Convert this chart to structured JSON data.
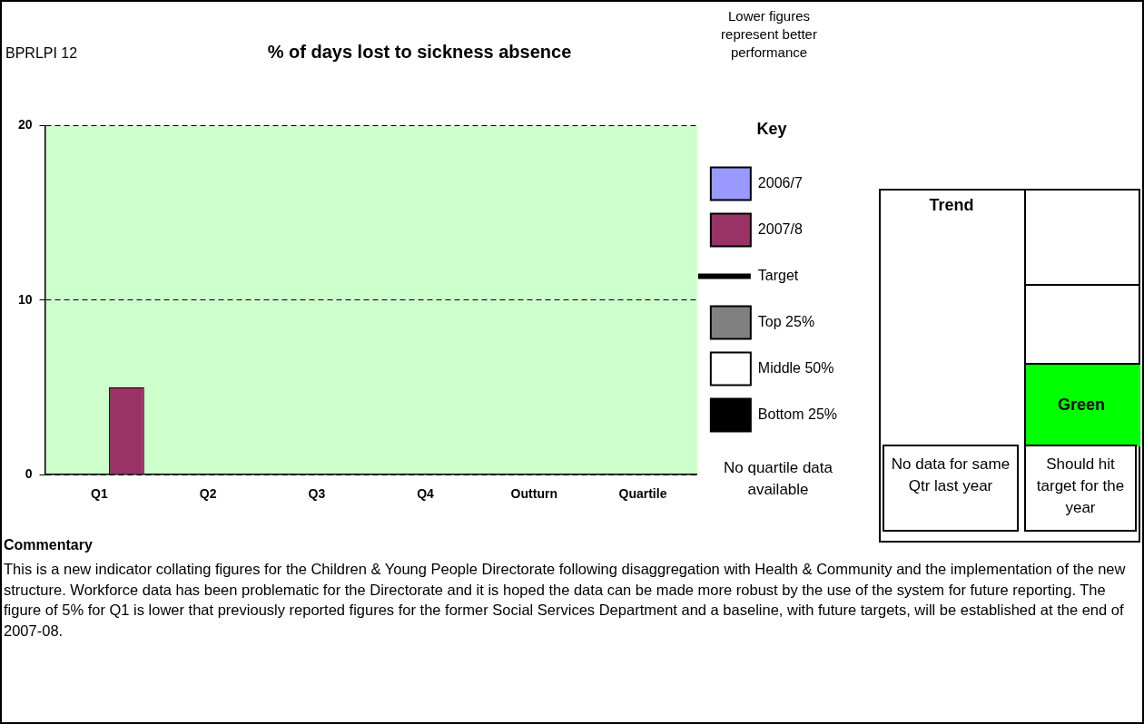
{
  "chart_data": {
    "type": "bar",
    "title": "% of days lost to sickness absence",
    "categories": [
      "Q1",
      "Q2",
      "Q3",
      "Q4",
      "Outturn",
      "Quartile"
    ],
    "series": [
      {
        "name": "2006/7",
        "color": "#9999ff",
        "values": [
          null,
          null,
          null,
          null,
          null,
          null
        ]
      },
      {
        "name": "2007/8",
        "color": "#993366",
        "values": [
          5,
          null,
          null,
          null,
          null,
          null
        ]
      },
      {
        "name": "Target",
        "type": "line",
        "color": "#000000",
        "values": [
          null,
          null,
          null,
          null,
          null,
          null
        ]
      },
      {
        "name": "Top 25%",
        "color": "#808080",
        "values": [
          null,
          null,
          null,
          null,
          null,
          null
        ]
      },
      {
        "name": "Middle 50%",
        "color": "#ffffff",
        "values": [
          null,
          null,
          null,
          null,
          null,
          null
        ]
      },
      {
        "name": "Bottom 25%",
        "color": "#000000",
        "values": [
          null,
          null,
          null,
          null,
          null,
          null
        ]
      }
    ],
    "ylim": [
      0,
      20
    ],
    "yticks": [
      0,
      10,
      20
    ],
    "grid": "y",
    "legend": "right",
    "legend_title": "Key",
    "annotations": [
      "BPRLPI 12",
      "Lower figures represent better performance",
      "No quartile data available",
      "Trend",
      "Green",
      "No data for same Qtr last year",
      "Should hit target for the year",
      "Commentary",
      "This is a new indicator collating figures for the Children & Young People Directorate following disaggregation with Health & Community and the implementation of the new structure.  Workforce data has been problematic for the Directorate and it is hoped the data can be made more robust by the use of the system for future reporting.  The figure of 5% for Q1 is lower that previously reported figures for the former Social Services Department and a baseline, with future targets, will be established at the end of 2007-08."
    ]
  }
}
